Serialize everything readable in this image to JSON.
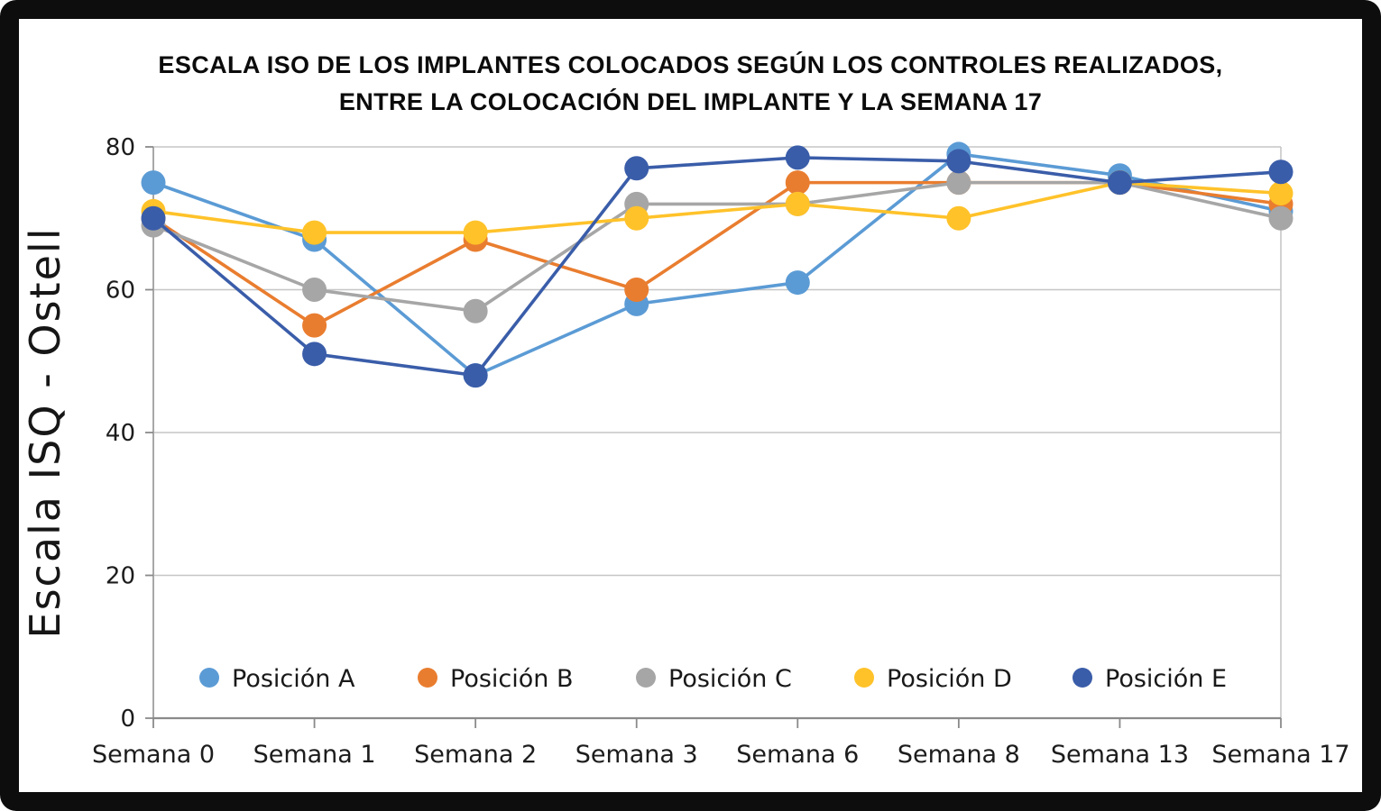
{
  "title_line1": "ESCALA ISO DE LOS IMPLANTES COLOCADOS SEGÚN LOS CONTROLES REALIZADOS,",
  "title_line2": "ENTRE LA COLOCACIÓN DEL IMPLANTE Y LA SEMANA 17",
  "frame": {
    "border_color": "#0d0d0d",
    "background": "#ffffff"
  },
  "chart_data": {
    "type": "line",
    "title": "ESCALA ISO DE LOS IMPLANTES COLOCADOS SEGÚN LOS CONTROLES REALIZADOS, ENTRE LA COLOCACIÓN DEL IMPLANTE Y LA SEMANA 17",
    "ylabel": "Escala  ISQ - Ostell",
    "xlabel": "",
    "ylim": [
      0,
      80
    ],
    "yticks": [
      0,
      20,
      40,
      60,
      80
    ],
    "grid": true,
    "legend_position": "bottom-inside",
    "categories": [
      "Semana 0",
      "Semana 1",
      "Semana 2",
      "Semana 3",
      "Semana 6",
      "Semana 8",
      "Semana 13",
      "Semana 17"
    ],
    "series": [
      {
        "name": "Posición A",
        "color": "#5B9BD5",
        "values": [
          75,
          67,
          48,
          58,
          61,
          79,
          76,
          71
        ]
      },
      {
        "name": "Posición B",
        "color": "#E97D2F",
        "values": [
          70,
          55,
          67,
          60,
          75,
          75,
          75,
          72
        ]
      },
      {
        "name": "Posición C",
        "color": "#A6A6A6",
        "values": [
          69,
          60,
          57,
          72,
          72,
          75,
          75,
          70
        ]
      },
      {
        "name": "Posición D",
        "color": "#FFC229",
        "values": [
          71,
          68,
          68,
          70,
          72,
          70,
          75,
          73.5
        ]
      },
      {
        "name": "Posición E",
        "color": "#3A5DA9",
        "values": [
          70,
          51,
          48,
          77,
          78.5,
          78,
          75,
          76.5
        ]
      }
    ]
  }
}
